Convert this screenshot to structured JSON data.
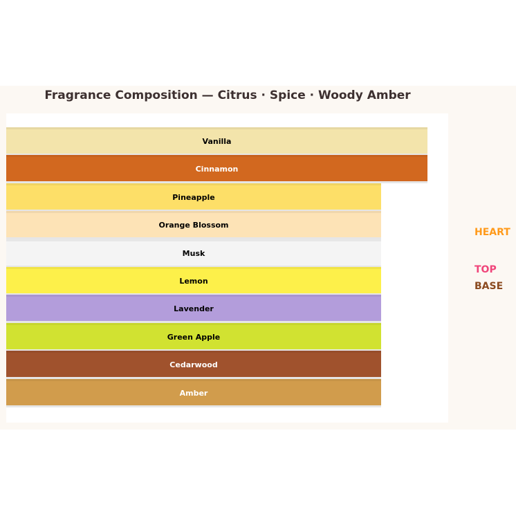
{
  "chart_data": {
    "type": "bar",
    "title": "Fragrance Composition — Citrus · Spice · Woody Amber",
    "categories": [
      "Vanilla",
      "Cinnamon",
      "Pineapple",
      "Orange Blossom",
      "Musk",
      "Lemon",
      "Lavender",
      "Green Apple",
      "Cedarwood",
      "Amber"
    ],
    "values": [
      1.0,
      1.0,
      0.89,
      0.89,
      0.89,
      0.89,
      0.89,
      0.89,
      0.89,
      0.89
    ],
    "colors": [
      "#f3e4ab",
      "#d2681f",
      "#fddf68",
      "#fde3b6",
      "#f4f4f4",
      "#fdf04a",
      "#b39ddb",
      "#d1e231",
      "#a0522d",
      "#d19c4c"
    ],
    "label_colors": [
      "#000000",
      "#ffffff",
      "#000000",
      "#000000",
      "#000000",
      "#000000",
      "#000000",
      "#000000",
      "#ffffff",
      "#ffffff"
    ],
    "legend": [
      {
        "label": "HEART",
        "color": "#ff9a1a"
      },
      {
        "label": "TOP",
        "color": "#f0457a"
      },
      {
        "label": "BASE",
        "color": "#8b4a1f"
      }
    ],
    "legend_position": "right"
  }
}
